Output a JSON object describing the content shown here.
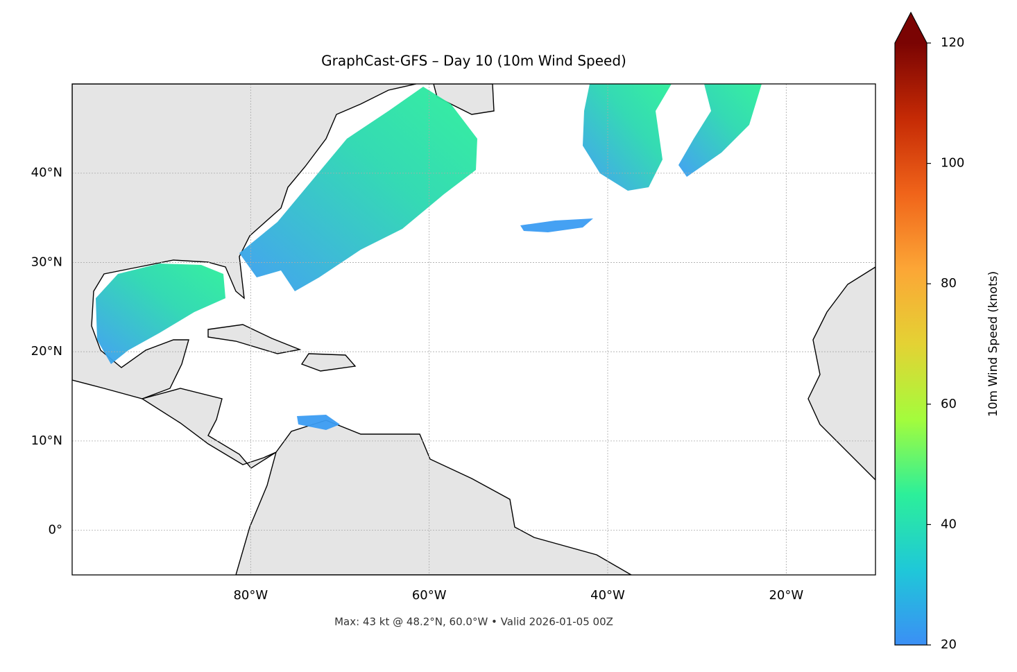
{
  "chart_data": {
    "type": "map",
    "title": "GraphCast-GFS – Day 10 (10m Wind Speed)",
    "xlim": [
      -100,
      -10
    ],
    "ylim": [
      -5,
      50
    ],
    "xticks": [
      {
        "value": -80,
        "label": "80°W"
      },
      {
        "value": -60,
        "label": "60°W"
      },
      {
        "value": -40,
        "label": "40°W"
      },
      {
        "value": -20,
        "label": "20°W"
      }
    ],
    "yticks": [
      {
        "value": 0,
        "label": "0°"
      },
      {
        "value": 10,
        "label": "10°N"
      },
      {
        "value": 20,
        "label": "20°N"
      },
      {
        "value": 30,
        "label": "30°N"
      },
      {
        "value": 40,
        "label": "40°N"
      }
    ],
    "grid": true,
    "colorbar": {
      "label": "10m Wind Speed (knots)",
      "lim": [
        20,
        120
      ],
      "ticks": [
        20,
        40,
        60,
        80,
        100,
        120
      ],
      "colors": [
        "#3b8ff5",
        "#1fc8d8",
        "#2cef9a",
        "#a4fc3c",
        "#e4d234",
        "#fca636",
        "#f0641a",
        "#c52a05",
        "#7a0403"
      ]
    },
    "footnote": "Max: 43 kt @ 48.2°N, 60.0°W • Valid 2026-01-05 00Z"
  }
}
